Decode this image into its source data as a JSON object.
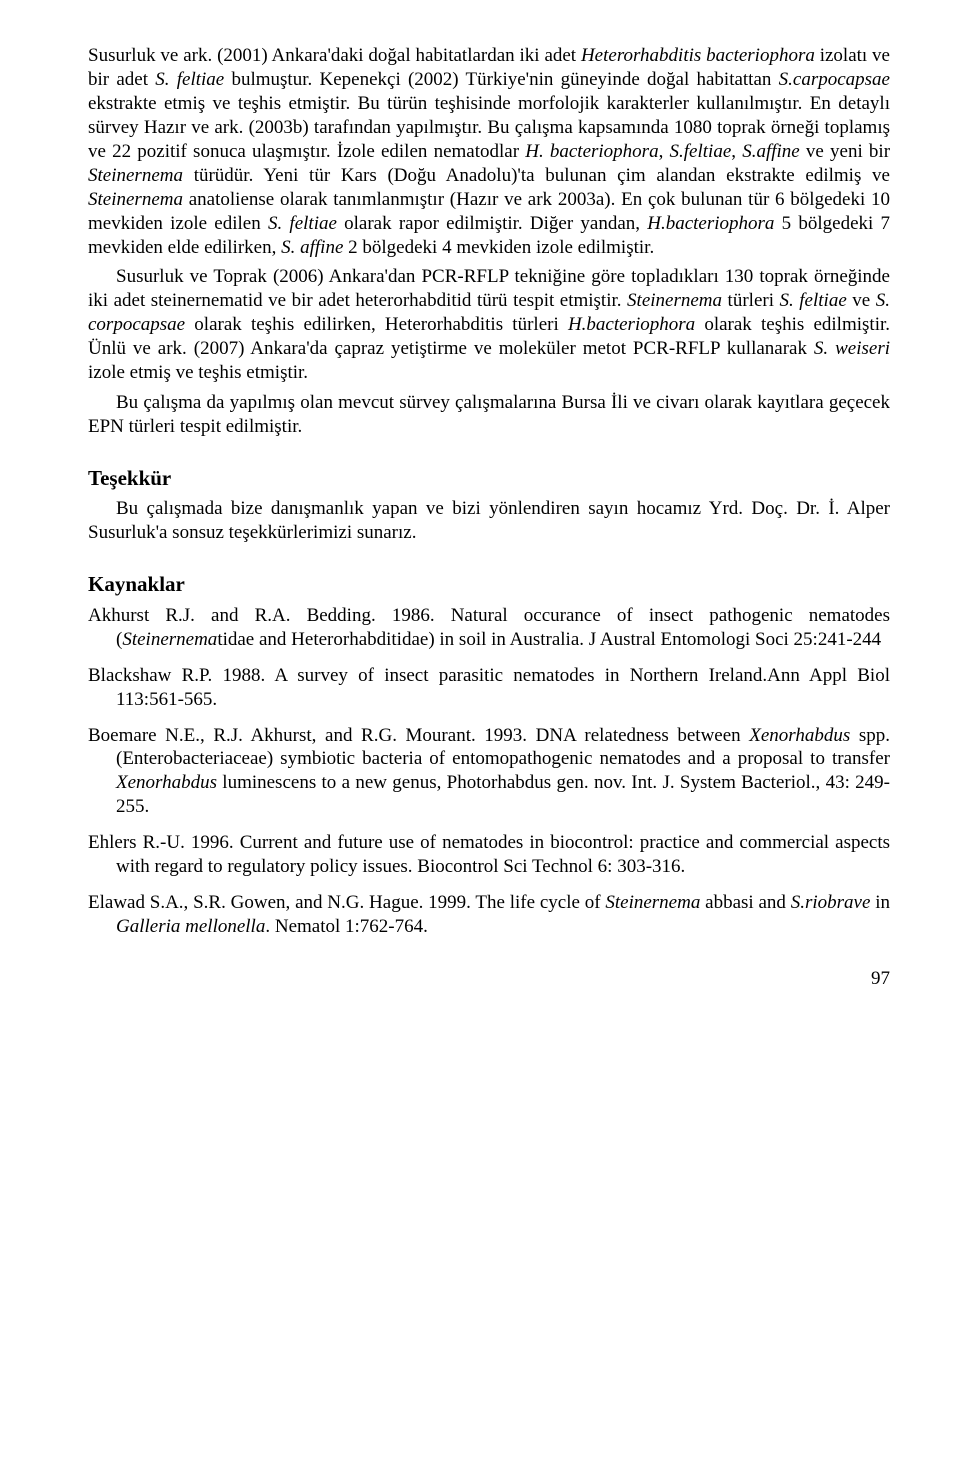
{
  "paragraphs": {
    "p1": "Susurluk ve ark. (2001) Ankara'daki doğal habitatlardan iki adet Heterorhabditis bacteriophora izolatı ve bir adet S. feltiae bulmuştur. Kepenekçi (2002) Türkiye'nin güneyinde doğal habitattan S.carpocapsae ekstrakte etmiş ve teşhis etmiştir. Bu türün teşhisinde morfolojik karakterler kullanılmıştır. En detaylı sürvey Hazır ve ark. (2003b) tarafından yapılmıştır. Bu çalışma kapsamında 1080 toprak örneği toplamış ve 22 pozitif sonuca ulaşmıştır. İzole edilen nematodlar H. bacteriophora, S.feltiae, S.affine ve yeni bir Steinernema türüdür. Yeni tür Kars (Doğu Anadolu)'ta bulunan çim alandan ekstrakte edilmiş ve Steinernema anatoliense olarak tanımlanmıştır (Hazır ve ark 2003a). En çok bulunan tür 6 bölgedeki 10 mevkiden izole edilen S. feltiae olarak rapor edilmiştir. Diğer yandan, H.bacteriophora 5 bölgedeki 7 mevkiden elde edilirken, S. affine 2 bölgedeki 4 mevkiden izole edilmiştir.",
    "p2": "Susurluk ve Toprak (2006) Ankara'dan PCR-RFLP tekniğine göre topladıkları 130 toprak örneğinde iki adet steinernematid ve bir adet heterorhabditid türü tespit etmiştir. Steinernema türleri S. feltiae ve S. corpocapsae olarak teşhis edilirken, Heterorhabditis türleri H.bacteriophora olarak teşhis edilmiştir. Ünlü ve ark. (2007) Ankara'da çapraz yetiştirme ve moleküler metot PCR-RFLP kullanarak S. weiseri izole etmiş ve teşhis etmiştir.",
    "p3": "Bu çalışma da yapılmış olan mevcut sürvey çalışmalarına Bursa İli ve civarı olarak kayıtlara geçecek EPN türleri tespit edilmiştir."
  },
  "sections": {
    "thanks_title": "Teşekkür",
    "thanks_body": "Bu çalışmada bize danışmanlık yapan ve bizi yönlendiren sayın hocamız Yrd. Doç. Dr. İ. Alper Susurluk'a sonsuz teşekkürlerimizi sunarız.",
    "refs_title": "Kaynaklar"
  },
  "references": {
    "r1": "Akhurst R.J. and R.A. Bedding. 1986. Natural occurance of insect pathogenic nematodes (Steinernematidae and Heterorhabditidae) in soil in Australia. J Austral Entomologi Soci 25:241-244",
    "r2": "Blackshaw R.P. 1988. A survey of insect parasitic nematodes in Northern Ireland.Ann Appl Biol 113:561-565.",
    "r3": "Boemare N.E., R.J. Akhurst, and R.G. Mourant. 1993. DNA relatedness between Xenorhabdus spp. (Enterobacteriaceae) symbiotic bacteria of entomopathogenic nematodes and a proposal to transfer Xenorhabdus luminescens to a new genus, Photorhabdus gen. nov. Int. J. System Bacteriol., 43: 249-255.",
    "r4": "Ehlers R.-U. 1996. Current and future use of nematodes in biocontrol: practice and commercial aspects with regard to regulatory policy issues. Biocontrol Sci Technol 6: 303-316.",
    "r5": "Elawad S.A., S.R. Gowen, and N.G. Hague. 1999. The life cycle of Steinernema abbasi and S.riobrave in Galleria mellonella. Nematol 1:762-764."
  },
  "page_number": "97"
}
